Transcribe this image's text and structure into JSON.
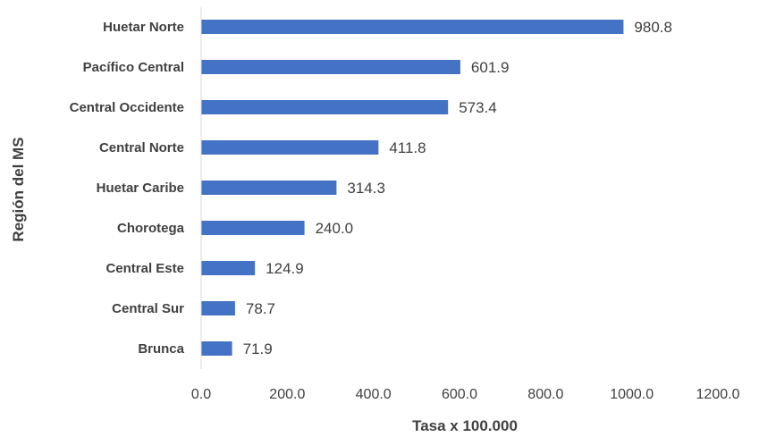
{
  "chart_data": {
    "type": "bar",
    "orientation": "horizontal",
    "title": "",
    "xlabel": "Tasa x 100.000",
    "ylabel": "Región del MS",
    "categories": [
      "Huetar Norte",
      "Pacífico Central",
      "Central Occidente",
      "Central Norte",
      "Huetar Caribe",
      "Chorotega",
      "Central Este",
      "Central Sur",
      "Brunca"
    ],
    "values": [
      980.8,
      601.9,
      573.4,
      411.8,
      314.3,
      240.0,
      124.9,
      78.7,
      71.9
    ],
    "value_labels": [
      "980.8",
      "601.9",
      "573.4",
      "411.8",
      "314.3",
      "240.0",
      "124.9",
      "78.7",
      "71.9"
    ],
    "xlim": [
      0,
      1200
    ],
    "xticks": [
      "0.0",
      "200.0",
      "400.0",
      "600.0",
      "800.0",
      "1000.0",
      "1200.0"
    ],
    "grid": false,
    "legend": "none",
    "bar_color": "#4472c4"
  }
}
